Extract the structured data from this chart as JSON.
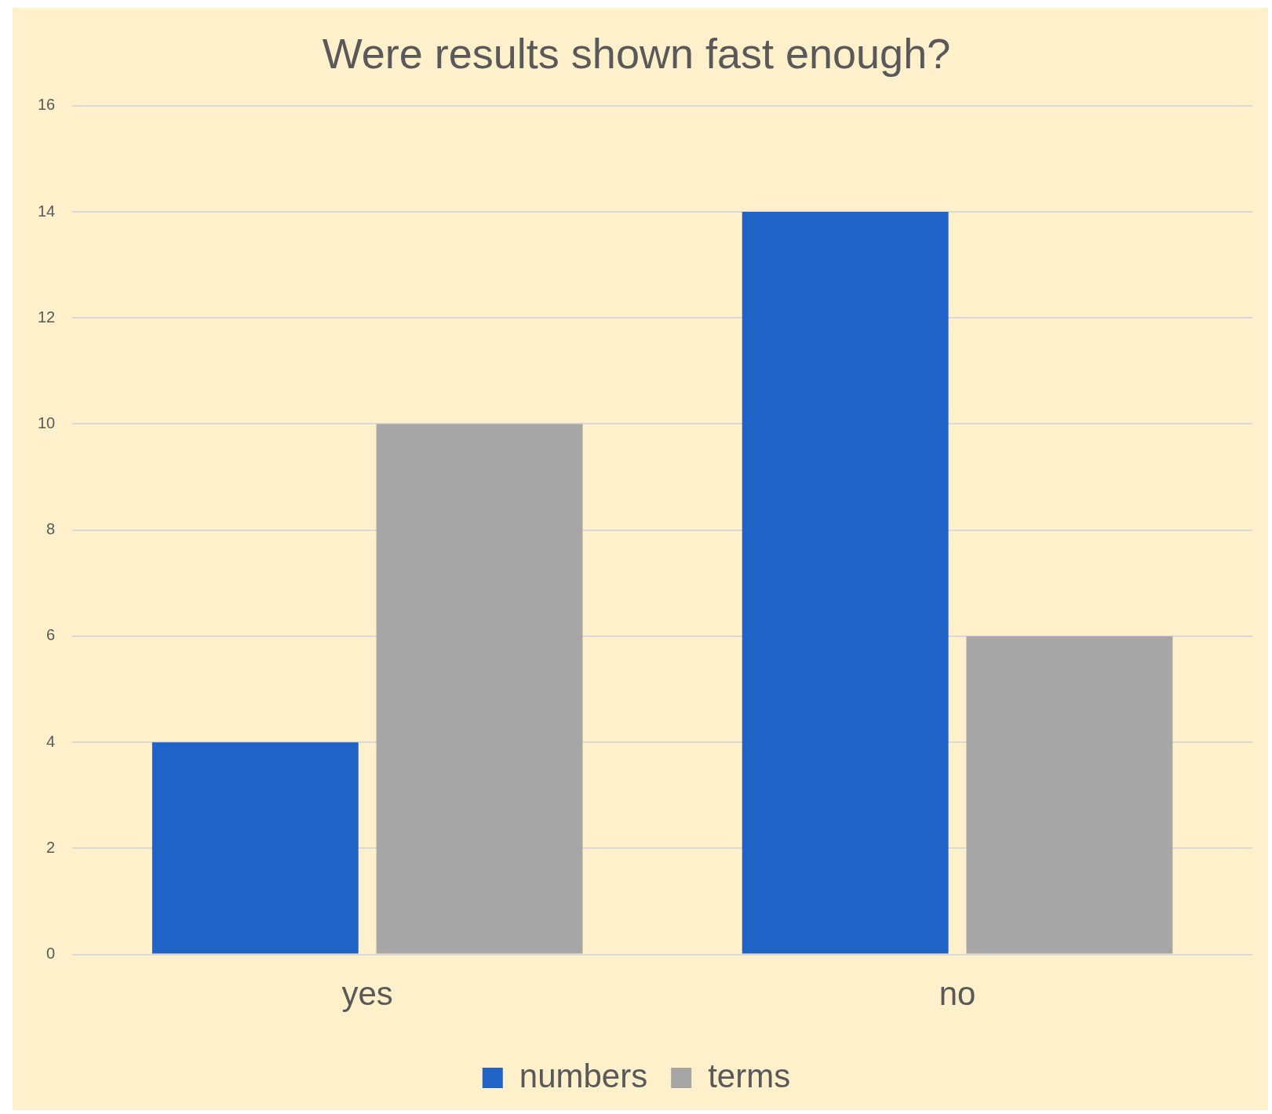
{
  "chart_data": {
    "type": "bar",
    "title": "Were results shown fast enough?",
    "categories": [
      "yes",
      "no"
    ],
    "series": [
      {
        "name": "numbers",
        "color": "#1f63c6",
        "values": [
          4,
          14
        ]
      },
      {
        "name": "terms",
        "color": "#a6a6a6",
        "values": [
          10,
          6
        ]
      }
    ],
    "ylim": [
      0,
      16
    ],
    "yticks": [
      0,
      2,
      4,
      6,
      8,
      10,
      12,
      14,
      16
    ],
    "grid": "y",
    "legend": "bottom"
  }
}
